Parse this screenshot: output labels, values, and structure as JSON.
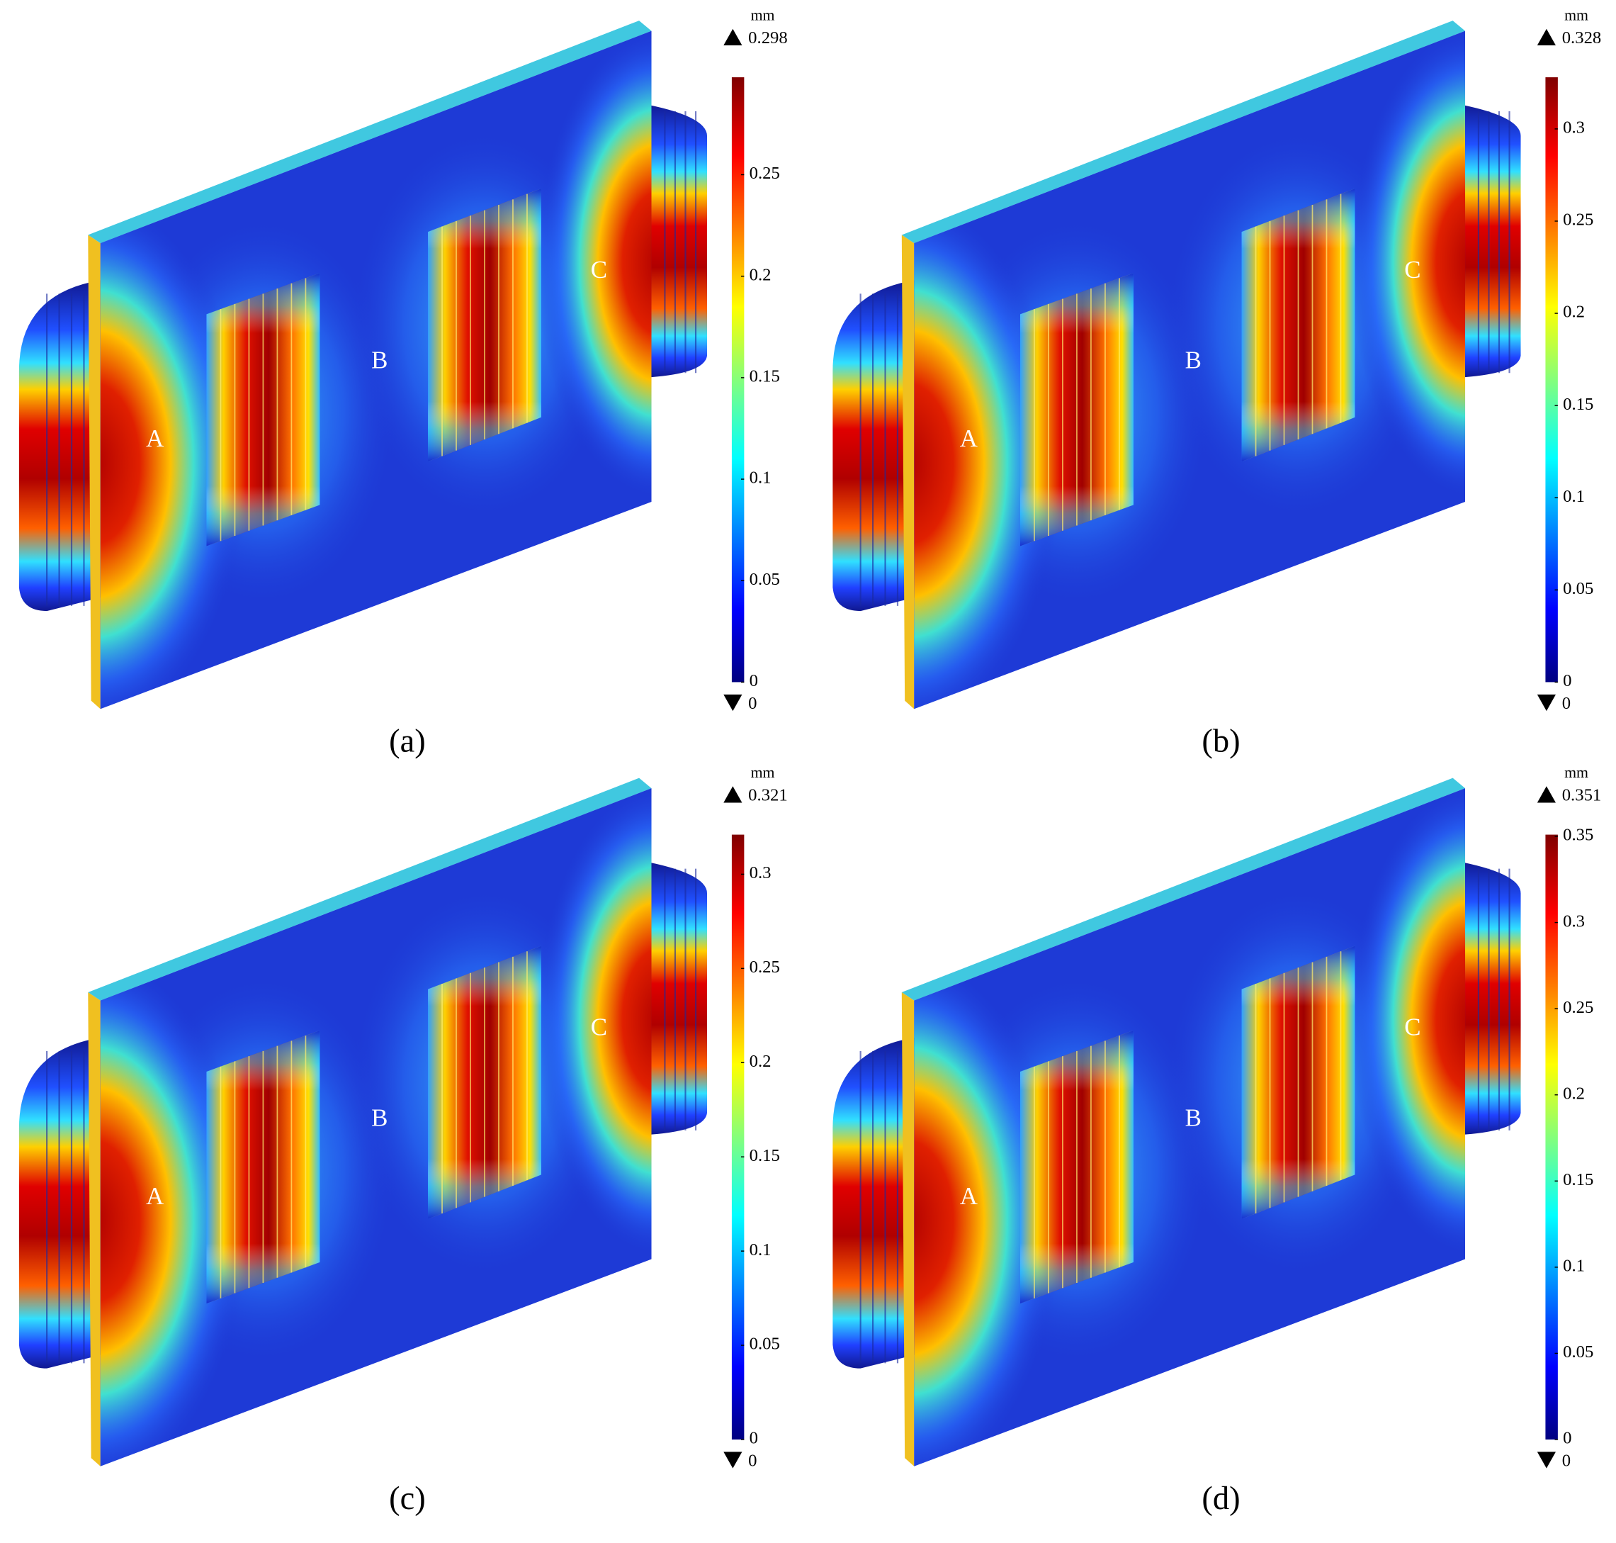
{
  "panels": [
    {
      "caption": "(a)",
      "unit": "mm",
      "max": 0.298,
      "min": 0,
      "ticks": [
        0,
        0.05,
        0.1,
        0.15,
        0.2,
        0.25
      ],
      "labels": [
        "A",
        "B",
        "C"
      ]
    },
    {
      "caption": "(b)",
      "unit": "mm",
      "max": 0.328,
      "min": 0,
      "ticks": [
        0,
        0.05,
        0.1,
        0.15,
        0.2,
        0.25,
        0.3
      ],
      "labels": [
        "A",
        "B",
        "C"
      ]
    },
    {
      "caption": "(c)",
      "unit": "mm",
      "max": 0.321,
      "min": 0,
      "ticks": [
        0,
        0.05,
        0.1,
        0.15,
        0.2,
        0.25,
        0.3
      ],
      "labels": [
        "A",
        "B",
        "C"
      ]
    },
    {
      "caption": "(d)",
      "unit": "mm",
      "max": 0.351,
      "min": 0,
      "ticks": [
        0,
        0.05,
        0.1,
        0.15,
        0.2,
        0.25,
        0.3,
        0.35
      ],
      "labels": [
        "A",
        "B",
        "C"
      ]
    }
  ]
}
